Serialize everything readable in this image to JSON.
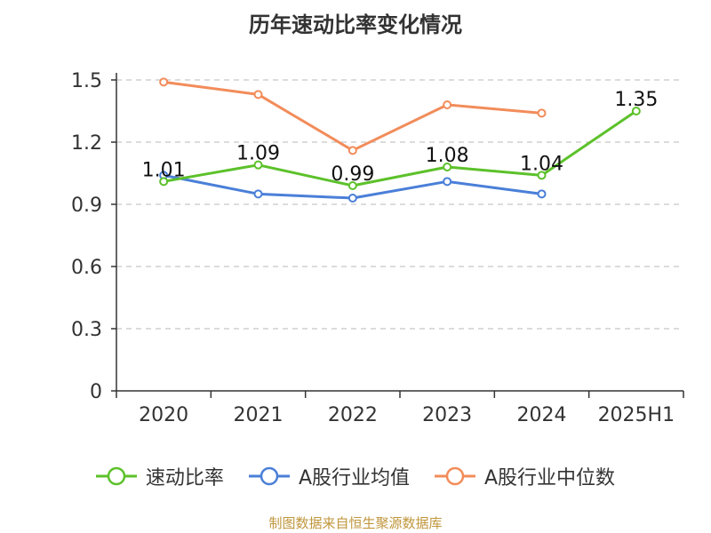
{
  "chart_data": {
    "type": "line",
    "title": "历年速动比率变化情况",
    "categories": [
      "2020",
      "2021",
      "2022",
      "2023",
      "2024",
      "2025H1"
    ],
    "y_ticks": [
      "0",
      "0.3",
      "0.6",
      "0.9",
      "1.2",
      "1.5"
    ],
    "ylim": [
      0,
      1.5
    ],
    "grid": true,
    "legend_position": "bottom",
    "series": [
      {
        "name": "速动比率",
        "color": "#5cc12a",
        "values": [
          1.01,
          1.09,
          0.99,
          1.08,
          1.04,
          1.35
        ],
        "labels": [
          "1.01",
          "1.09",
          "0.99",
          "1.08",
          "1.04",
          "1.35"
        ]
      },
      {
        "name": "A股行业均值",
        "color": "#4a7fd8",
        "values": [
          1.04,
          0.95,
          0.93,
          1.01,
          0.95,
          null
        ]
      },
      {
        "name": "A股行业中位数",
        "color": "#f28c5a",
        "values": [
          1.49,
          1.43,
          1.16,
          1.38,
          1.34,
          null
        ]
      }
    ]
  },
  "source_note": "制图数据来自恒生聚源数据库"
}
